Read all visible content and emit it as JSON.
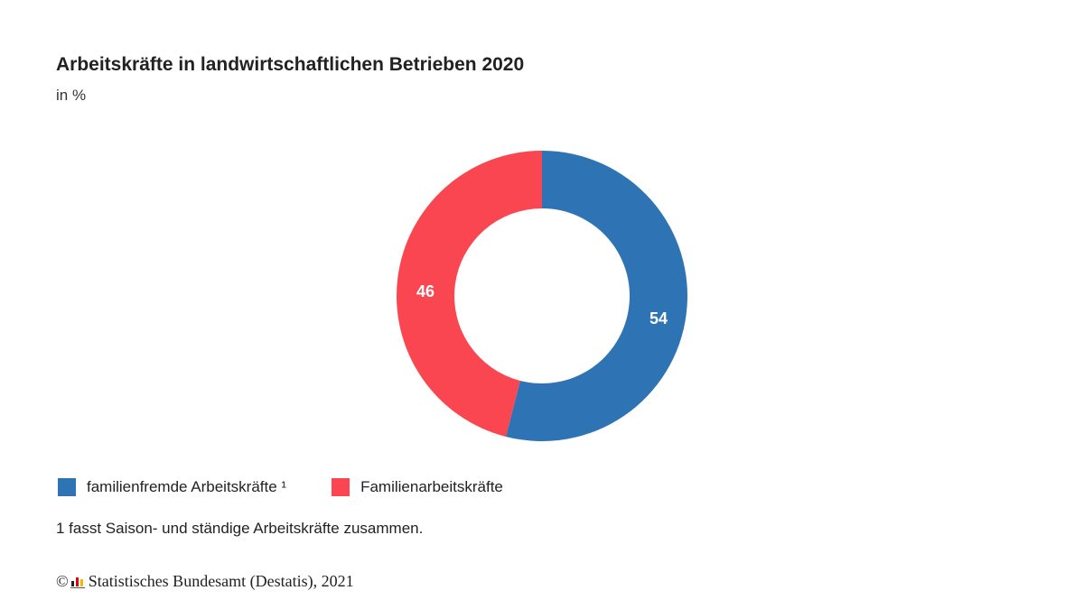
{
  "title": "Arbeitskräfte in landwirtschaftlichen Betrieben 2020",
  "subtitle": "in %",
  "chart_data": {
    "type": "pie",
    "donut": true,
    "title": "Arbeitskräfte in landwirtschaftlichen Betrieben 2020",
    "unit": "in %",
    "slices": [
      {
        "name": "familienfremde Arbeitskräfte ¹",
        "value": 54,
        "label": "54",
        "color": "#2e74b5"
      },
      {
        "name": "Familienarbeitskräfte",
        "value": 46,
        "label": "46",
        "color": "#f94650"
      }
    ],
    "legend_position": "bottom-left"
  },
  "footnote": "1 fasst Saison- und ständige Arbeitskräfte zusammen.",
  "source": {
    "copyright_symbol": "©",
    "text": "Statistisches Bundesamt (Destatis), 2021"
  },
  "colors": {
    "blue": "#2e74b5",
    "red": "#f94650"
  }
}
